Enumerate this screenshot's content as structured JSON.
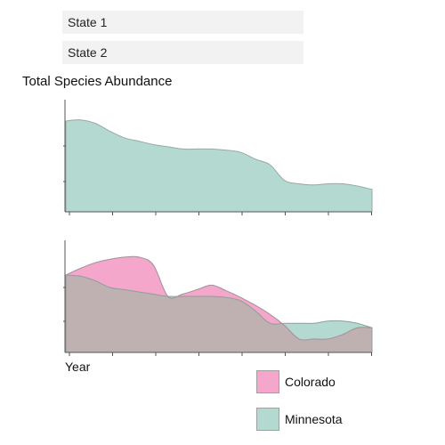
{
  "controls": {
    "state1": "State 1",
    "state2": "State 2"
  },
  "colors": {
    "colorado": "#f5a6cb",
    "minnesota": "#b3d9d0",
    "overlap": "#bfb0b1",
    "axis": "#555555"
  },
  "chart_data": {
    "type": "area",
    "title": "Total Species Abundance",
    "xlabel": "Year",
    "ylabel": "",
    "legend_position": "bottom-right",
    "grid": false,
    "panels": [
      {
        "series": [
          {
            "name": "Minnesota",
            "values": [
              0.81,
              0.82,
              0.79,
              0.72,
              0.66,
              0.63,
              0.6,
              0.58,
              0.56,
              0.56,
              0.56,
              0.55,
              0.53,
              0.47,
              0.42,
              0.28,
              0.25,
              0.24,
              0.25,
              0.25,
              0.23,
              0.2
            ]
          }
        ]
      },
      {
        "series": [
          {
            "name": "Colorado",
            "values": [
              0.69,
              0.75,
              0.8,
              0.83,
              0.85,
              0.85,
              0.78,
              0.5,
              0.52,
              0.56,
              0.6,
              0.55,
              0.49,
              0.42,
              0.34,
              0.24,
              0.12,
              0.12,
              0.12,
              0.16,
              0.22,
              0.22
            ]
          },
          {
            "name": "Minnesota",
            "values": [
              0.69,
              0.68,
              0.64,
              0.58,
              0.56,
              0.54,
              0.52,
              0.5,
              0.5,
              0.5,
              0.5,
              0.49,
              0.46,
              0.37,
              0.26,
              0.26,
              0.26,
              0.26,
              0.28,
              0.28,
              0.26,
              0.22
            ]
          }
        ]
      }
    ]
  }
}
